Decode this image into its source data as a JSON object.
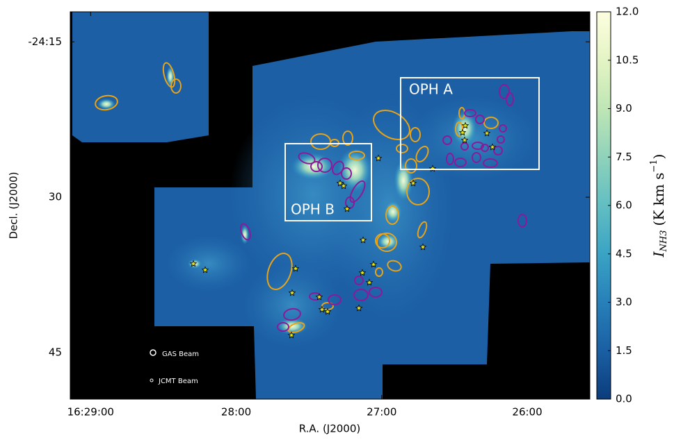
{
  "chart_data": {
    "type": "image",
    "xlabel": "R.A. (J2000)",
    "ylabel": "Decl. (J2000)",
    "colorbar_label_parts": [
      "I",
      "NH3",
      "(K km s",
      "−1",
      ")"
    ],
    "xlim": [
      29.14,
      25.57
    ],
    "xticks": [
      {
        "value": 29,
        "label": "16:29:00"
      },
      {
        "value": 28,
        "label": "28:00"
      },
      {
        "value": 27,
        "label": "27:00"
      },
      {
        "value": 26,
        "label": "26:00"
      }
    ],
    "ylim": [
      49.5,
      12.1
    ],
    "yticks": [
      {
        "value": 15,
        "label": "-24:15"
      },
      30,
      45
    ],
    "clim": [
      0,
      12
    ],
    "cticks": [
      {
        "value": 0,
        "label": "0.0"
      },
      {
        "value": 1.5,
        "label": "1.5"
      },
      {
        "value": 3,
        "label": "3.0"
      },
      {
        "value": 4.5,
        "label": "4.5"
      },
      {
        "value": 6,
        "label": "6.0"
      },
      {
        "value": 7.5,
        "label": "7.5"
      },
      {
        "value": 9,
        "label": "9.0"
      },
      {
        "value": 10.5,
        "label": "10.5"
      },
      {
        "value": 12,
        "label": "12.0"
      }
    ],
    "annotations": [
      "OPH A",
      "OPH B",
      "GAS Beam",
      "JCMT Beam"
    ]
  }
}
